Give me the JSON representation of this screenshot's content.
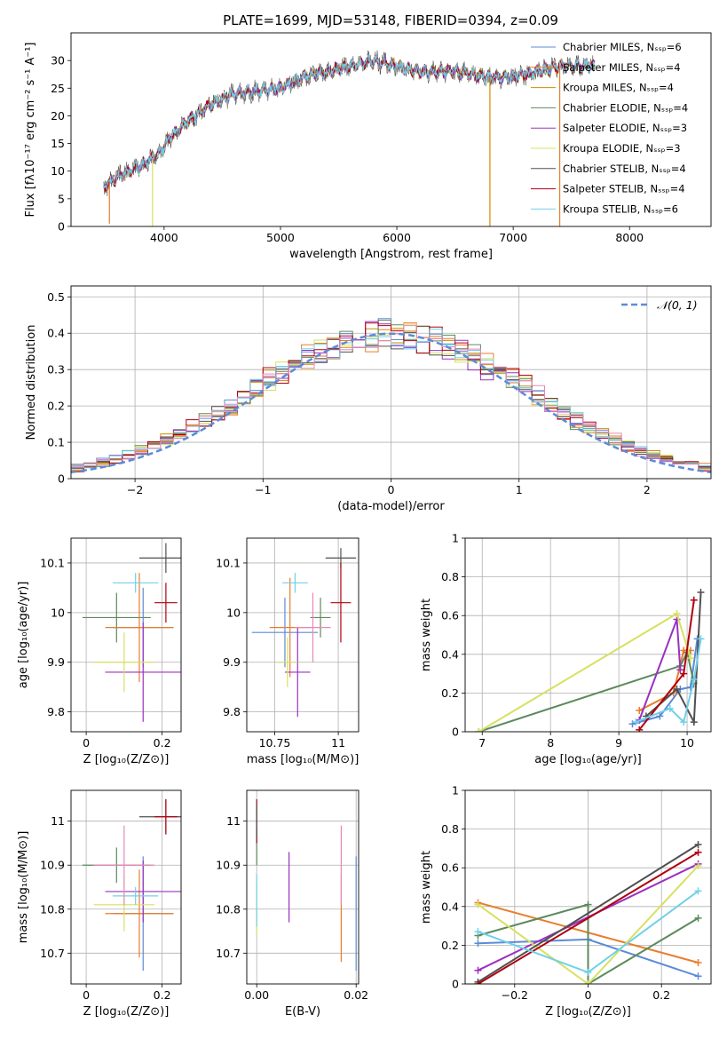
{
  "figure": {
    "title": "PLATE=1699, MJD=53148, FIBERID=0394, z=0.09"
  },
  "colors": {
    "chabrier_miles": "#5b8bd8",
    "salpeter_miles": "#e87e2c",
    "kroupa_miles": "#d08c00",
    "chabrier_elodie": "#5c8a5c",
    "salpeter_elodie": "#9b30c0",
    "kroupa_elodie": "#d8e060",
    "chabrier_stelib": "#505050",
    "salpeter_stelib": "#b00010",
    "kroupa_stelib": "#70d0e8",
    "pink": "#e888b8",
    "gaussian": "#5b8bd8",
    "grid": "#b0b0b0"
  },
  "chart_data": [
    {
      "id": "spectrum",
      "type": "line",
      "xlabel": "wavelength [Angstrom, rest frame]",
      "ylabel": "Flux [fλ10⁻¹⁷ erg cm⁻² s⁻¹ A⁻¹]",
      "xlim": [
        3200,
        8700
      ],
      "ylim": [
        0,
        35
      ],
      "xticks": [
        4000,
        5000,
        6000,
        7000,
        8000
      ],
      "yticks": [
        0,
        5,
        10,
        15,
        20,
        25,
        30
      ],
      "grid": false,
      "legend_position": "top-right",
      "legend": [
        {
          "label": "Chabrier MILES, Nₛₛₚ=6",
          "color": "#5b8bd8"
        },
        {
          "label": "Salpeter MILES, Nₛₛₚ=4",
          "color": "#e87e2c"
        },
        {
          "label": "Kroupa MILES, Nₛₛₚ=4",
          "color": "#d08c00"
        },
        {
          "label": "Chabrier ELODIE, Nₛₛₚ=4",
          "color": "#5c8a5c"
        },
        {
          "label": "Salpeter ELODIE, Nₛₛₚ=3",
          "color": "#9b30c0"
        },
        {
          "label": "Kroupa ELODIE, Nₛₛₚ=3",
          "color": "#d8e060"
        },
        {
          "label": "Chabrier STELIB, Nₛₛₚ=4",
          "color": "#505050"
        },
        {
          "label": "Salpeter STELIB, Nₛₛₚ=4",
          "color": "#b00010"
        },
        {
          "label": "Kroupa STELIB, Nₛₛₚ=6",
          "color": "#70d0e8"
        }
      ],
      "continuum": [
        [
          3480,
          7
        ],
        [
          3600,
          9
        ],
        [
          3800,
          11
        ],
        [
          3950,
          13
        ],
        [
          4050,
          16
        ],
        [
          4200,
          19
        ],
        [
          4400,
          22
        ],
        [
          4600,
          24
        ],
        [
          4800,
          24.5
        ],
        [
          5000,
          25
        ],
        [
          5200,
          27
        ],
        [
          5400,
          28
        ],
        [
          5600,
          29
        ],
        [
          5800,
          30
        ],
        [
          6000,
          29
        ],
        [
          6200,
          28
        ],
        [
          6500,
          28
        ],
        [
          6800,
          27
        ],
        [
          7000,
          27
        ],
        [
          7200,
          28
        ],
        [
          7400,
          29
        ],
        [
          7600,
          29
        ],
        [
          7700,
          29
        ]
      ],
      "dips": [
        [
          3900,
          0
        ],
        [
          6800,
          0
        ],
        [
          7400,
          0
        ],
        [
          3530,
          0.5
        ]
      ]
    },
    {
      "id": "residuals",
      "type": "line",
      "xlabel": "(data-model)/error",
      "ylabel": "Normed distribution",
      "xlim": [
        -2.5,
        2.5
      ],
      "ylim": [
        0,
        0.53
      ],
      "xticks": [
        -2,
        -1,
        0,
        1,
        2
      ],
      "yticks": [
        0.0,
        0.1,
        0.2,
        0.3,
        0.4,
        0.5
      ],
      "grid": true,
      "legend_position": "top-right",
      "legend": [
        {
          "label": "𝒩(0, 1)",
          "color": "#5b8bd8"
        }
      ],
      "bin_width": 0.1
    },
    {
      "id": "age_vs_Z",
      "type": "scatter",
      "xlabel": "Z [log₁₀(Z/Z⊙)]",
      "ylabel": "age  [log₁₀(age/yr)]",
      "xlim": [
        -0.04,
        0.25
      ],
      "ylim": [
        9.76,
        10.15
      ],
      "xticks": [
        0.0,
        0.2
      ],
      "yticks": [
        9.8,
        9.9,
        10.0,
        10.1
      ],
      "grid": true,
      "points": [
        {
          "x": 0.08,
          "xerr": 0.09,
          "y": 9.99,
          "yerr": 0.05,
          "color": "#5c8a5c"
        },
        {
          "x": 0.15,
          "xerr": 0.08,
          "y": 9.97,
          "yerr": 0.08,
          "color": "#5b8bd8"
        },
        {
          "x": 0.14,
          "xerr": 0.09,
          "y": 9.97,
          "yerr": 0.11,
          "color": "#e87e2c"
        },
        {
          "x": 0.15,
          "xerr": 0.1,
          "y": 9.88,
          "yerr": 0.1,
          "color": "#9b30c0"
        },
        {
          "x": 0.1,
          "xerr": 0.08,
          "y": 9.9,
          "yerr": 0.06,
          "color": "#d8e060"
        },
        {
          "x": 0.21,
          "xerr": 0.07,
          "y": 10.11,
          "yerr": 0.03,
          "color": "#505050"
        },
        {
          "x": 0.21,
          "xerr": 0.03,
          "y": 10.02,
          "yerr": 0.04,
          "color": "#b00010"
        },
        {
          "x": 0.13,
          "xerr": 0.06,
          "y": 10.06,
          "yerr": 0.02,
          "color": "#70d0e8"
        }
      ]
    },
    {
      "id": "age_vs_mass",
      "type": "scatter",
      "xlabel": "mass [log₁₀(M/M⊙)]",
      "ylabel": "",
      "xlim": [
        10.64,
        11.08
      ],
      "ylim": [
        9.76,
        10.15
      ],
      "xticks": [
        10.75,
        11.0
      ],
      "yticks": [
        9.8,
        9.9,
        10.0,
        10.1
      ],
      "grid": true,
      "points": [
        {
          "x": 10.93,
          "xerr": 0.04,
          "y": 9.99,
          "yerr": 0.04,
          "color": "#5c8a5c"
        },
        {
          "x": 10.79,
          "xerr": 0.13,
          "y": 9.96,
          "yerr": 0.07,
          "color": "#5b8bd8"
        },
        {
          "x": 10.81,
          "xerr": 0.08,
          "y": 9.97,
          "yerr": 0.1,
          "color": "#e87e2c"
        },
        {
          "x": 10.84,
          "xerr": 0.05,
          "y": 9.88,
          "yerr": 0.09,
          "color": "#9b30c0"
        },
        {
          "x": 10.8,
          "xerr": 0.04,
          "y": 9.9,
          "yerr": 0.05,
          "color": "#d8e060"
        },
        {
          "x": 11.01,
          "xerr": 0.06,
          "y": 10.11,
          "yerr": 0.02,
          "color": "#505050"
        },
        {
          "x": 11.01,
          "xerr": 0.04,
          "y": 10.02,
          "yerr": 0.08,
          "color": "#b00010"
        },
        {
          "x": 10.83,
          "xerr": 0.05,
          "y": 10.06,
          "yerr": 0.02,
          "color": "#70d0e8"
        },
        {
          "x": 10.9,
          "xerr": 0.07,
          "y": 9.97,
          "yerr": 0.07,
          "color": "#e888b8"
        }
      ]
    },
    {
      "id": "weight_vs_age",
      "type": "line",
      "xlabel": "age  [log₁₀(age/yr)]",
      "ylabel": "mass weight",
      "xlim": [
        6.75,
        10.35
      ],
      "ylim": [
        0,
        1.0
      ],
      "xticks": [
        7,
        8,
        9,
        10
      ],
      "yticks": [
        0.0,
        0.2,
        0.4,
        0.6,
        0.8,
        1.0
      ],
      "grid": true,
      "series": [
        {
          "color": "#5b8bd8",
          "x": [
            9.2,
            9.6,
            9.9,
            10.05,
            10.15
          ],
          "y": [
            0.04,
            0.08,
            0.22,
            0.23,
            0.48
          ]
        },
        {
          "color": "#e87e2c",
          "x": [
            9.3,
            9.8,
            9.95,
            10.05
          ],
          "y": [
            0.11,
            0.2,
            0.42,
            0.42
          ]
        },
        {
          "color": "#5c8a5c",
          "x": [
            6.95,
            9.9,
            10.0,
            10.1
          ],
          "y": [
            0.0,
            0.34,
            0.41,
            0.25
          ]
        },
        {
          "color": "#9b30c0",
          "x": [
            9.3,
            9.85,
            9.9
          ],
          "y": [
            0.06,
            0.58,
            0.32
          ]
        },
        {
          "color": "#d8e060",
          "x": [
            6.95,
            9.85,
            10.05
          ],
          "y": [
            0.0,
            0.61,
            0.38
          ]
        },
        {
          "color": "#505050",
          "x": [
            9.4,
            9.85,
            10.1,
            10.2
          ],
          "y": [
            0.08,
            0.22,
            0.05,
            0.72
          ]
        },
        {
          "color": "#b00010",
          "x": [
            9.3,
            9.95,
            10.1
          ],
          "y": [
            0.01,
            0.3,
            0.68
          ]
        },
        {
          "color": "#70d0e8",
          "x": [
            9.25,
            9.75,
            9.95,
            10.1,
            10.2
          ],
          "y": [
            0.05,
            0.12,
            0.05,
            0.27,
            0.48
          ]
        }
      ]
    },
    {
      "id": "mass_vs_Z",
      "type": "scatter",
      "xlabel": "Z [log₁₀(Z/Z⊙)]",
      "ylabel": "mass [log₁₀(M/M⊙)]",
      "xlim": [
        -0.04,
        0.25
      ],
      "ylim": [
        10.63,
        11.07
      ],
      "xticks": [
        0.0,
        0.2
      ],
      "yticks": [
        10.7,
        10.8,
        10.9,
        11.0
      ],
      "grid": true,
      "points": [
        {
          "x": 0.08,
          "xerr": 0.09,
          "y": 10.9,
          "yerr": 0.04,
          "color": "#5c8a5c"
        },
        {
          "x": 0.15,
          "xerr": 0.08,
          "y": 10.79,
          "yerr": 0.13,
          "color": "#5b8bd8"
        },
        {
          "x": 0.14,
          "xerr": 0.09,
          "y": 10.79,
          "yerr": 0.1,
          "color": "#e87e2c"
        },
        {
          "x": 0.15,
          "xerr": 0.1,
          "y": 10.84,
          "yerr": 0.07,
          "color": "#9b30c0"
        },
        {
          "x": 0.1,
          "xerr": 0.08,
          "y": 10.81,
          "yerr": 0.06,
          "color": "#d8e060"
        },
        {
          "x": 0.21,
          "xerr": 0.07,
          "y": 11.01,
          "yerr": 0.04,
          "color": "#505050"
        },
        {
          "x": 0.21,
          "xerr": 0.03,
          "y": 11.01,
          "yerr": 0.04,
          "color": "#b00010"
        },
        {
          "x": 0.13,
          "xerr": 0.06,
          "y": 10.83,
          "yerr": 0.02,
          "color": "#70d0e8"
        },
        {
          "x": 0.1,
          "xerr": 0.08,
          "y": 10.9,
          "yerr": 0.09,
          "color": "#e888b8"
        }
      ]
    },
    {
      "id": "mass_vs_ebv",
      "type": "scatter",
      "xlabel": "E(B-V)",
      "ylabel": "",
      "xlim": [
        -0.002,
        0.0205
      ],
      "ylim": [
        10.63,
        11.07
      ],
      "xticks": [
        0.0,
        0.02
      ],
      "xticklabels": [
        "0.00",
        "0.02"
      ],
      "yticks": [
        10.7,
        10.8,
        10.9,
        11.0
      ],
      "grid": true,
      "points": [
        {
          "x": 0.0,
          "y": 10.8,
          "yerr": 0.06,
          "color": "#d8e060"
        },
        {
          "x": 0.0,
          "y": 10.82,
          "yerr": 0.06,
          "color": "#70d0e8"
        },
        {
          "x": 0.0,
          "y": 10.94,
          "yerr": 0.04,
          "color": "#5c8a5c"
        },
        {
          "x": 0.0,
          "y": 11.0,
          "yerr": 0.05,
          "color": "#b00010"
        },
        {
          "x": 0.0,
          "y": 11.0,
          "yerr": 0.04,
          "color": "#505050"
        },
        {
          "x": 0.0065,
          "y": 10.85,
          "yerr": 0.08,
          "color": "#9b30c0"
        },
        {
          "x": 0.017,
          "y": 10.78,
          "yerr": 0.1,
          "color": "#e87e2c"
        },
        {
          "x": 0.017,
          "y": 10.9,
          "yerr": 0.09,
          "color": "#e888b8"
        },
        {
          "x": 0.02,
          "y": 10.79,
          "yerr": 0.13,
          "color": "#5b8bd8"
        }
      ]
    },
    {
      "id": "weight_vs_Z",
      "type": "line",
      "xlabel": "Z [log₁₀(Z/Z⊙)]",
      "ylabel": "mass weight",
      "xlim": [
        -0.335,
        0.335
      ],
      "ylim": [
        0,
        1.0
      ],
      "xticks": [
        -0.2,
        0.0,
        0.2
      ],
      "yticks": [
        0.0,
        0.2,
        0.4,
        0.6,
        0.8,
        1.0
      ],
      "grid": true,
      "series": [
        {
          "color": "#5b8bd8",
          "x": [
            -0.3,
            0.0,
            0.3
          ],
          "y": [
            0.21,
            0.23,
            0.04
          ]
        },
        {
          "color": "#e87e2c",
          "x": [
            -0.3,
            0.3
          ],
          "y": [
            0.42,
            0.11
          ]
        },
        {
          "color": "#5c8a5c",
          "x": [
            -0.3,
            0.0,
            0.0,
            0.3
          ],
          "y": [
            0.25,
            0.41,
            0.0,
            0.34
          ]
        },
        {
          "color": "#9b30c0",
          "x": [
            -0.3,
            0.3
          ],
          "y": [
            0.07,
            0.62
          ]
        },
        {
          "color": "#d8e060",
          "x": [
            -0.3,
            0.0,
            0.3
          ],
          "y": [
            0.41,
            0.0,
            0.61
          ]
        },
        {
          "color": "#505050",
          "x": [
            -0.3,
            0.3
          ],
          "y": [
            0.01,
            0.72
          ]
        },
        {
          "color": "#b00010",
          "x": [
            -0.3,
            0.3
          ],
          "y": [
            0.0,
            0.68
          ]
        },
        {
          "color": "#70d0e8",
          "x": [
            -0.3,
            0.0,
            0.3
          ],
          "y": [
            0.27,
            0.06,
            0.48
          ]
        }
      ]
    }
  ]
}
